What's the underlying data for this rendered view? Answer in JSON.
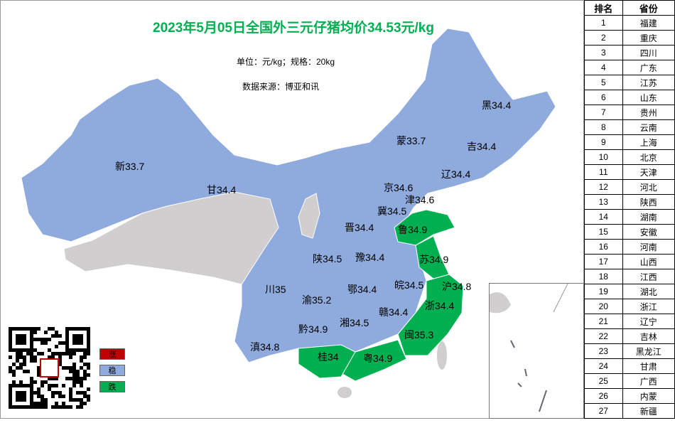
{
  "title": "2023年5月05日全国外三元仔猪均价34.53元/kg",
  "unit": "单位：元/kg；规格：20kg",
  "source": "数据来源：博亚和讯",
  "colors": {
    "rise": "#c00000",
    "stable": "#8faadc",
    "fall": "#00b050",
    "nodata": "#d0cece"
  },
  "legend": [
    {
      "label": "涨",
      "color": "#c00000"
    },
    {
      "label": "稳",
      "color": "#8faadc"
    },
    {
      "label": "跌",
      "color": "#00b050"
    }
  ],
  "provinces": [
    {
      "abbr": "新",
      "price": "33.7",
      "status": "stable"
    },
    {
      "abbr": "甘",
      "price": "34.4",
      "status": "stable"
    },
    {
      "abbr": "蒙",
      "price": "33.7",
      "status": "stable"
    },
    {
      "abbr": "黑",
      "price": "34.4",
      "status": "stable"
    },
    {
      "abbr": "吉",
      "price": "34.4",
      "status": "stable"
    },
    {
      "abbr": "辽",
      "price": "34.4",
      "status": "stable"
    },
    {
      "abbr": "京",
      "price": "34.6",
      "status": "stable"
    },
    {
      "abbr": "津",
      "price": "34.6",
      "status": "stable"
    },
    {
      "abbr": "冀",
      "price": "34.5",
      "status": "stable"
    },
    {
      "abbr": "晋",
      "price": "34.4",
      "status": "stable"
    },
    {
      "abbr": "鲁",
      "price": "34.9",
      "status": "fall"
    },
    {
      "abbr": "陕",
      "price": "34.5",
      "status": "stable"
    },
    {
      "abbr": "豫",
      "price": "34.4",
      "status": "stable"
    },
    {
      "abbr": "苏",
      "price": "34.9",
      "status": "fall"
    },
    {
      "abbr": "川",
      "price": "35",
      "status": "stable"
    },
    {
      "abbr": "渝",
      "price": "35.2",
      "status": "stable"
    },
    {
      "abbr": "鄂",
      "price": "34.4",
      "status": "stable"
    },
    {
      "abbr": "皖",
      "price": "34.5",
      "status": "stable"
    },
    {
      "abbr": "沪",
      "price": "34.8",
      "status": "fall"
    },
    {
      "abbr": "浙",
      "price": "34.4",
      "status": "fall"
    },
    {
      "abbr": "湘",
      "price": "34.5",
      "status": "stable"
    },
    {
      "abbr": "赣",
      "price": "34.4",
      "status": "stable"
    },
    {
      "abbr": "黔",
      "price": "34.9",
      "status": "stable"
    },
    {
      "abbr": "闽",
      "price": "35.3",
      "status": "fall"
    },
    {
      "abbr": "滇",
      "price": "34.8",
      "status": "stable"
    },
    {
      "abbr": "桂",
      "price": "34",
      "status": "fall"
    },
    {
      "abbr": "粤",
      "price": "34.9",
      "status": "fall"
    }
  ],
  "ranking": {
    "headers": [
      "排名",
      "省份"
    ],
    "rows": [
      [
        "1",
        "福建"
      ],
      [
        "2",
        "重庆"
      ],
      [
        "3",
        "四川"
      ],
      [
        "4",
        "广东"
      ],
      [
        "5",
        "江苏"
      ],
      [
        "6",
        "山东"
      ],
      [
        "7",
        "贵州"
      ],
      [
        "8",
        "云南"
      ],
      [
        "9",
        "上海"
      ],
      [
        "10",
        "北京"
      ],
      [
        "11",
        "天津"
      ],
      [
        "12",
        "河北"
      ],
      [
        "13",
        "陕西"
      ],
      [
        "14",
        "湖南"
      ],
      [
        "15",
        "安徽"
      ],
      [
        "16",
        "河南"
      ],
      [
        "17",
        "山西"
      ],
      [
        "18",
        "江西"
      ],
      [
        "19",
        "湖北"
      ],
      [
        "20",
        "浙江"
      ],
      [
        "21",
        "辽宁"
      ],
      [
        "22",
        "吉林"
      ],
      [
        "23",
        "黑龙江"
      ],
      [
        "24",
        "甘肃"
      ],
      [
        "25",
        "广西"
      ],
      [
        "26",
        "内蒙"
      ],
      [
        "27",
        "新疆"
      ]
    ]
  }
}
